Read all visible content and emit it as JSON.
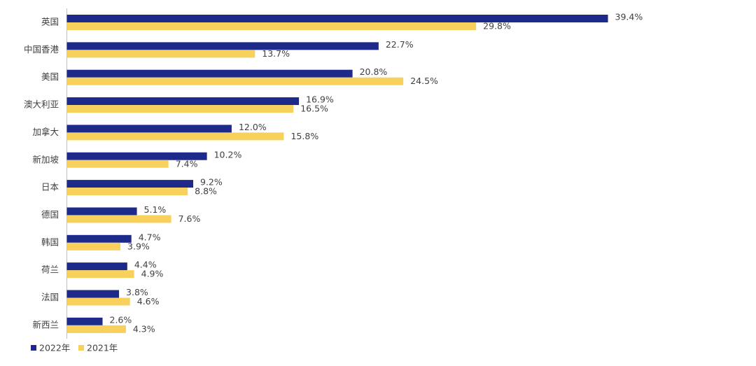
{
  "chart_data": {
    "type": "bar",
    "orientation": "horizontal",
    "categories": [
      "英国",
      "中国香港",
      "美国",
      "澳大利亚",
      "加拿大",
      "新加坡",
      "日本",
      "德国",
      "韩国",
      "荷兰",
      "法国",
      "新西兰"
    ],
    "series": [
      {
        "name": "2022年",
        "color": "#1d2a8a",
        "values": [
          39.4,
          22.7,
          20.8,
          16.9,
          12.0,
          10.2,
          9.2,
          5.1,
          4.7,
          4.4,
          3.8,
          2.6
        ],
        "value_labels": [
          "39.4%",
          "22.7%",
          "20.8%",
          "16.9%",
          "12.0%",
          "10.2%",
          "9.2%",
          "5.1%",
          "4.7%",
          "4.4%",
          "3.8%",
          "2.6%"
        ]
      },
      {
        "name": "2021年",
        "color": "#f7d15c",
        "values": [
          29.8,
          13.7,
          24.5,
          16.5,
          15.8,
          7.4,
          8.8,
          7.6,
          3.9,
          4.9,
          4.6,
          4.3
        ],
        "value_labels": [
          "29.8%",
          "13.7%",
          "24.5%",
          "16.5%",
          "15.8%",
          "7.4%",
          "8.8%",
          "7.6%",
          "3.9%",
          "4.9%",
          "4.6%",
          "4.3%"
        ]
      }
    ],
    "legend": "bottom-left"
  }
}
